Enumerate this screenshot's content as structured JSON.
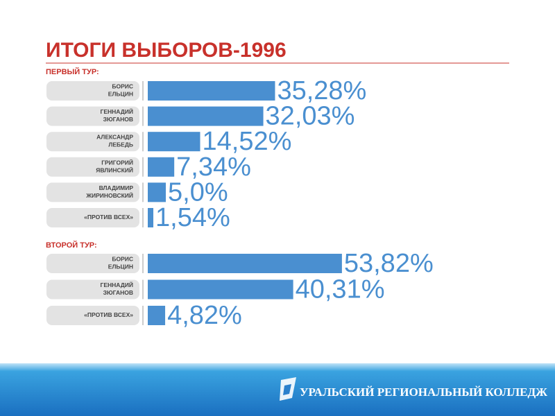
{
  "title": "ИТОГИ ВЫБОРОВ-1996",
  "footer": "УРАЛЬСКИЙ РЕГИОНАЛЬНЫЙ КОЛЛЕДЖ",
  "chart_data": [
    {
      "type": "bar",
      "title": "ПЕРВЫЙ ТУР:",
      "color": "#4a8fd0",
      "categories": [
        "БОРИС\nЕЛЬЦИН",
        "ГЕННАДИЙ\nЗЮГАНОВ",
        "АЛЕКСАНДР\nЛЕБЕДЬ",
        "ГРИГОРИЙ\nЯВЛИНСКИЙ",
        "ВЛАДИМИР\nЖИРИНОВСКИЙ",
        "«ПРОТИВ ВСЕХ»"
      ],
      "values": [
        35.28,
        32.03,
        14.52,
        7.34,
        5.0,
        1.54
      ],
      "value_labels": [
        "35,28%",
        "32,03%",
        "14,52%",
        "7,34%",
        "5,0%",
        "1,54%"
      ]
    },
    {
      "type": "bar",
      "title": "ВТОРОЙ ТУР:",
      "color": "#4a8fd0",
      "categories": [
        "БОРИС\nЕЛЬЦИН",
        "ГЕННАДИЙ\nЗЮГАНОВ",
        "«ПРОТИВ ВСЕХ»"
      ],
      "values": [
        53.82,
        40.31,
        4.82
      ],
      "value_labels": [
        "53,82%",
        "40,31%",
        "4,82%"
      ]
    }
  ]
}
